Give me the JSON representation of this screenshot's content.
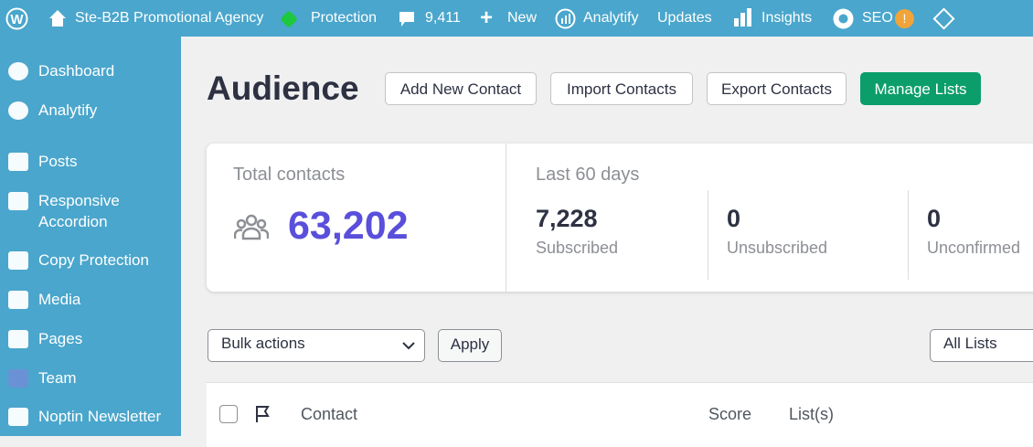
{
  "admin_bar": {
    "site": "Ste-B2B Promotional Agency",
    "items": [
      "Protection",
      "9,411",
      "New",
      "Analytify",
      "Updates",
      "Insights",
      "SEO"
    ],
    "seo_badge": "!"
  },
  "sidebar": {
    "items": [
      "Dashboard",
      "Analytify",
      "Posts",
      "Responsive Accordion",
      "Copy Protection",
      "Media",
      "Pages",
      "Team",
      "Noptin Newsletter"
    ]
  },
  "header": {
    "title": "Audience",
    "buttons": [
      "Add New Contact",
      "Import Contacts",
      "Export Contacts",
      "Manage Lists"
    ]
  },
  "stats": {
    "total_label": "Total contacts",
    "total_value": "63,202",
    "period_label": "Last 60 days",
    "items": [
      {
        "value": "7,228",
        "label": "Subscribed"
      },
      {
        "value": "0",
        "label": "Unsubscribed"
      },
      {
        "value": "0",
        "label": "Unconfirmed"
      }
    ]
  },
  "toolbar": {
    "bulk": "Bulk actions",
    "apply": "Apply",
    "lists": "All Lists"
  },
  "table": {
    "columns": [
      "Contact",
      "Score",
      "List(s)"
    ]
  }
}
